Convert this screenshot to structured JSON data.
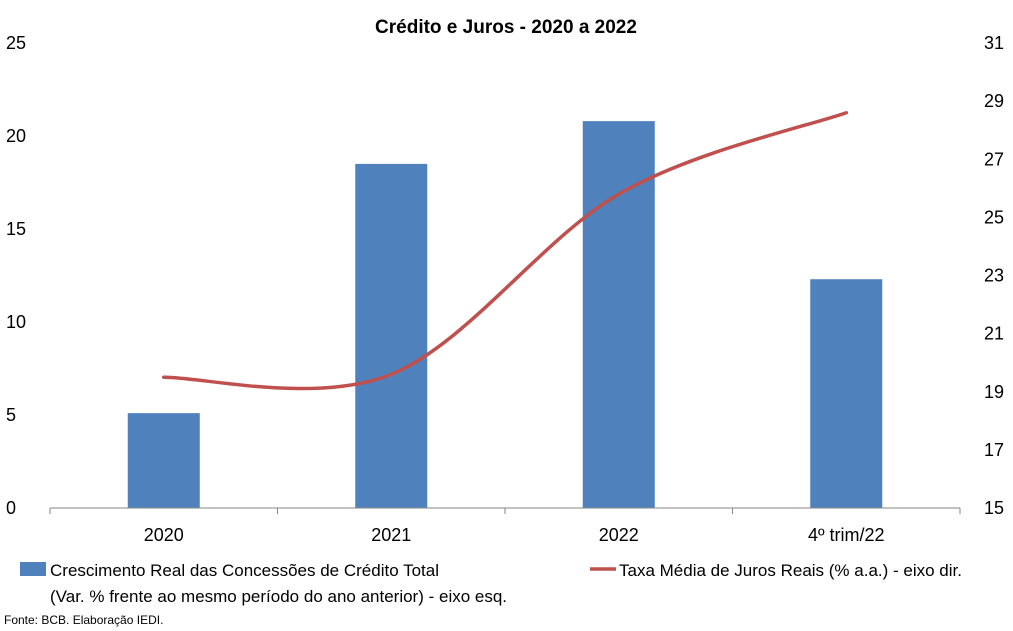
{
  "chart_data": {
    "type": "bar",
    "title": "Crédito e Juros - 2020 a 2022",
    "categories": [
      "2020",
      "2021",
      "2022",
      "4º trim/22"
    ],
    "series": [
      {
        "name": "Crescimento Real das Concessões de Crédito Total",
        "name_line2": "(Var. % frente ao mesmo período do ano anterior) - eixo esq.",
        "type": "bar",
        "axis": "left",
        "color": "#4F81BD",
        "values": [
          5.1,
          18.5,
          20.8,
          12.3
        ]
      },
      {
        "name": "Taxa Média de Juros Reais (% a.a.) - eixo dir.",
        "type": "line",
        "axis": "right",
        "color": "#C0504D",
        "values": [
          19.5,
          19.6,
          25.8,
          28.6
        ]
      }
    ],
    "y_left": {
      "min": 0,
      "max": 25,
      "ticks": [
        "0",
        "5",
        "10",
        "15",
        "20",
        "25"
      ]
    },
    "y_right": {
      "min": 15,
      "max": 31,
      "ticks": [
        "15",
        "17",
        "19",
        "21",
        "23",
        "25",
        "27",
        "29",
        "31"
      ]
    },
    "legend_position": "bottom",
    "grid": false,
    "source": "Fonte: BCB. Elaboração IEDI."
  }
}
